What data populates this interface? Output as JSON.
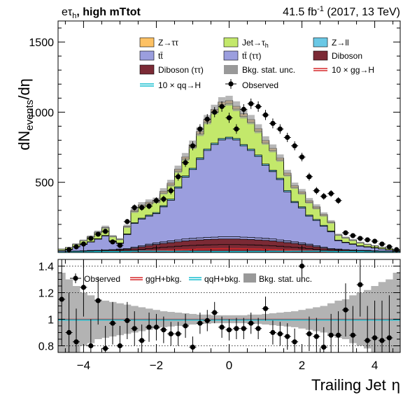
{
  "header": {
    "channel": "eτ",
    "channel_sub": "h",
    "category": ", high mTtot",
    "lumi": "41.5 fb",
    "lumi_sup": "-1",
    "lumi_suffix": " (2017, 13 TeV)"
  },
  "colors": {
    "ztt": "#fdc164",
    "jetfake": "#c3e86b",
    "zll": "#6ac8e5",
    "ttbar": "#9b9ede",
    "ttbar_tt": "#9b9ede",
    "diboson": "#7b2a35",
    "diboson_tt": "#7b2a35",
    "stat_unc": "#999999",
    "ggh": "#d62728",
    "qqh": "#17becf"
  },
  "chart_data": [
    {
      "type": "histogram-stack",
      "ylabel": "dN",
      "ylabel_sub": "events",
      "ylabel_suffix": "/dη",
      "ylim": [
        0,
        1650
      ],
      "xlim": [
        -4.7,
        4.7
      ],
      "yticks": [
        500,
        1000,
        1500
      ],
      "bin_edges": [
        -4.7,
        -4.5,
        -4.3,
        -4.1,
        -3.9,
        -3.7,
        -3.5,
        -3.3,
        -3.1,
        -2.9,
        -2.7,
        -2.5,
        -2.3,
        -2.1,
        -1.9,
        -1.7,
        -1.5,
        -1.3,
        -1.1,
        -0.9,
        -0.7,
        -0.5,
        -0.3,
        -0.1,
        0.1,
        0.3,
        0.5,
        0.7,
        0.9,
        1.1,
        1.3,
        1.5,
        1.7,
        1.9,
        2.1,
        2.3,
        2.5,
        2.7,
        2.9,
        3.1,
        3.3,
        3.5,
        3.7,
        3.9,
        4.1,
        4.3,
        4.5,
        4.7
      ],
      "legend": [
        {
          "key": "ztt",
          "label": "Z→ττ",
          "style": "fill"
        },
        {
          "key": "jetfake",
          "label": "Jet→τ",
          "sub": "h",
          "style": "fill"
        },
        {
          "key": "zll",
          "label": "Z→ll",
          "style": "fill"
        },
        {
          "key": "ttbar",
          "label": "tt̄",
          "style": "fill"
        },
        {
          "key": "ttbar_tt",
          "label": "tt̄ (ττ)",
          "style": "fill"
        },
        {
          "key": "diboson",
          "label": "Diboson",
          "style": "fill"
        },
        {
          "key": "diboson_tt",
          "label": "Diboson (ττ)",
          "style": "fill"
        },
        {
          "key": "stat_unc",
          "label": "Bkg. stat. unc.",
          "style": "fill"
        },
        {
          "key": "ggh",
          "label": "10 × gg→H",
          "style": "line"
        },
        {
          "key": "qqh",
          "label": "10 × qq→H",
          "style": "line"
        },
        {
          "key": "observed",
          "label": "Observed",
          "style": "marker"
        }
      ],
      "series": [
        {
          "name": "Diboson (ττ)",
          "key": "diboson_tt",
          "values": [
            2,
            3,
            4,
            5,
            6,
            6,
            7,
            8,
            10,
            12,
            16,
            22,
            28,
            32,
            36,
            40,
            44,
            48,
            50,
            52,
            54,
            55,
            56,
            56,
            56,
            55,
            54,
            52,
            50,
            48,
            44,
            40,
            36,
            32,
            28,
            22,
            16,
            12,
            10,
            8,
            7,
            6,
            6,
            5,
            4,
            3,
            2
          ]
        },
        {
          "name": "Diboson",
          "key": "diboson",
          "values": [
            2,
            3,
            4,
            5,
            5,
            6,
            7,
            8,
            9,
            10,
            14,
            18,
            22,
            25,
            28,
            30,
            32,
            34,
            36,
            37,
            38,
            39,
            40,
            40,
            40,
            39,
            38,
            37,
            36,
            34,
            32,
            30,
            28,
            25,
            22,
            18,
            14,
            10,
            9,
            8,
            7,
            6,
            5,
            5,
            4,
            3,
            2
          ]
        },
        {
          "name": "tt̄ (ττ)",
          "key": "ttbar_tt",
          "values": [
            1,
            1,
            2,
            2,
            3,
            3,
            4,
            4,
            5,
            6,
            7,
            8,
            9,
            10,
            11,
            12,
            13,
            14,
            14,
            15,
            15,
            15,
            16,
            16,
            16,
            15,
            15,
            15,
            14,
            14,
            13,
            12,
            11,
            10,
            9,
            8,
            7,
            6,
            5,
            4,
            4,
            3,
            3,
            2,
            2,
            1,
            1
          ]
        },
        {
          "name": "tt̄",
          "key": "ttbar",
          "values": [
            8,
            15,
            30,
            45,
            60,
            80,
            100,
            60,
            40,
            100,
            170,
            190,
            200,
            210,
            250,
            290,
            370,
            440,
            490,
            560,
            620,
            660,
            690,
            700,
            690,
            650,
            620,
            580,
            520,
            480,
            430,
            350,
            280,
            250,
            200,
            180,
            150,
            120,
            60,
            50,
            40,
            30,
            25,
            20,
            15,
            10,
            5
          ]
        },
        {
          "name": "Z→ll",
          "key": "zll",
          "values": [
            1,
            1,
            1,
            2,
            2,
            3,
            3,
            3,
            3,
            4,
            5,
            6,
            7,
            7,
            8,
            8,
            9,
            9,
            10,
            10,
            10,
            10,
            10,
            10,
            10,
            10,
            10,
            10,
            10,
            10,
            9,
            9,
            8,
            8,
            7,
            7,
            6,
            5,
            4,
            3,
            3,
            3,
            2,
            2,
            1,
            1,
            1
          ]
        },
        {
          "name": "Jet→τh",
          "key": "jetfake",
          "values": [
            10,
            12,
            18,
            25,
            35,
            45,
            55,
            30,
            25,
            50,
            80,
            85,
            80,
            75,
            90,
            100,
            110,
            120,
            150,
            170,
            190,
            220,
            240,
            240,
            210,
            200,
            190,
            170,
            150,
            140,
            130,
            110,
            100,
            95,
            90,
            80,
            70,
            60,
            35,
            30,
            25,
            20,
            15,
            12,
            10,
            8,
            6
          ]
        },
        {
          "name": "Z→ττ",
          "key": "ztt",
          "values": [
            0,
            1,
            1,
            2,
            2,
            3,
            3,
            3,
            3,
            5,
            8,
            10,
            12,
            12,
            13,
            14,
            15,
            16,
            18,
            18,
            20,
            20,
            20,
            20,
            20,
            20,
            20,
            18,
            18,
            16,
            15,
            14,
            13,
            12,
            12,
            10,
            8,
            5,
            3,
            3,
            3,
            2,
            2,
            2,
            1,
            1,
            0
          ]
        }
      ],
      "stat_unc": [
        3,
        4,
        5,
        6,
        8,
        10,
        12,
        8,
        7,
        12,
        18,
        20,
        20,
        20,
        22,
        24,
        26,
        28,
        30,
        32,
        33,
        34,
        35,
        35,
        35,
        34,
        33,
        32,
        30,
        28,
        26,
        24,
        22,
        20,
        20,
        18,
        15,
        12,
        8,
        7,
        7,
        6,
        5,
        4,
        3,
        3,
        2
      ],
      "signals": [
        {
          "name": "10 × gg→H",
          "key": "ggh",
          "values": [
            1,
            1,
            2,
            2,
            3,
            3,
            3,
            4,
            4,
            5,
            6,
            8,
            10,
            12,
            14,
            16,
            18,
            20,
            22,
            24,
            25,
            26,
            27,
            27,
            27,
            26,
            25,
            24,
            22,
            20,
            18,
            16,
            14,
            12,
            10,
            8,
            6,
            5,
            4,
            4,
            3,
            3,
            3,
            2,
            2,
            1,
            1
          ]
        },
        {
          "name": "10 × qq→H",
          "key": "qqh",
          "values": [
            1,
            2,
            3,
            4,
            5,
            6,
            7,
            6,
            6,
            7,
            8,
            9,
            9,
            9,
            9,
            8,
            8,
            8,
            7,
            7,
            7,
            6,
            6,
            6,
            6,
            6,
            7,
            7,
            7,
            8,
            8,
            8,
            9,
            9,
            9,
            9,
            8,
            7,
            6,
            6,
            7,
            6,
            5,
            4,
            3,
            2,
            1
          ]
        }
      ],
      "observed": {
        "x": [
          -4.4,
          -4.2,
          -4.0,
          -3.8,
          -3.6,
          -3.4,
          -3.2,
          -3.0,
          -2.8,
          -2.6,
          -2.4,
          -2.2,
          -2.0,
          -1.8,
          -1.6,
          -1.4,
          -1.2,
          -1.0,
          -0.8,
          -0.6,
          -0.4,
          -0.2,
          0.0,
          0.2,
          0.4,
          0.6,
          0.8,
          1.0,
          1.2,
          1.4,
          1.6,
          1.8,
          2.0,
          2.2,
          2.4,
          2.6,
          2.8,
          3.0,
          3.2,
          3.4,
          3.6,
          3.8,
          4.0,
          4.2,
          4.4,
          4.6
        ],
        "y": [
          20,
          40,
          60,
          100,
          130,
          150,
          75,
          50,
          220,
          320,
          320,
          330,
          370,
          380,
          440,
          540,
          640,
          760,
          880,
          950,
          1000,
          1040,
          960,
          880,
          1020,
          1060,
          1040,
          980,
          920,
          880,
          820,
          760,
          680,
          540,
          440,
          400,
          420,
          370,
          140,
          120,
          100,
          90,
          80,
          60,
          40,
          20
        ],
        "err": [
          6,
          8,
          10,
          12,
          14,
          15,
          10,
          8,
          18,
          22,
          22,
          22,
          23,
          24,
          26,
          28,
          30,
          32,
          34,
          36,
          36,
          37,
          36,
          34,
          37,
          37,
          37,
          36,
          35,
          34,
          33,
          32,
          30,
          28,
          26,
          24,
          24,
          23,
          14,
          13,
          12,
          11,
          10,
          9,
          7,
          5
        ]
      }
    },
    {
      "type": "ratio",
      "xlabel": "Trailing Jet",
      "xlabel_suffix": "η",
      "ylim": [
        0.75,
        1.45
      ],
      "yticks": [
        0.8,
        1,
        1.2,
        1.4
      ],
      "xticks": [
        -4,
        -2,
        0,
        2,
        4
      ],
      "legend": [
        {
          "key": "observed",
          "label": "Observed",
          "style": "marker"
        },
        {
          "key": "ggh",
          "label": "ggH+bkg.",
          "style": "line"
        },
        {
          "key": "qqh",
          "label": "qqH+bkg.",
          "style": "line"
        },
        {
          "key": "stat_unc",
          "label": "Bkg. stat. unc.",
          "style": "fill"
        }
      ],
      "unc_band": [
        0.35,
        0.3,
        0.25,
        0.2,
        0.18,
        0.15,
        0.14,
        0.13,
        0.12,
        0.11,
        0.1,
        0.09,
        0.08,
        0.07,
        0.06,
        0.055,
        0.05,
        0.045,
        0.04,
        0.035,
        0.035,
        0.03,
        0.03,
        0.03,
        0.03,
        0.03,
        0.035,
        0.035,
        0.04,
        0.045,
        0.05,
        0.055,
        0.06,
        0.07,
        0.08,
        0.09,
        0.1,
        0.12,
        0.14,
        0.15,
        0.18,
        0.2,
        0.22,
        0.25,
        0.28,
        0.3,
        0.35
      ],
      "observed": {
        "x": [
          -4.6,
          -4.4,
          -4.2,
          -4.0,
          -3.8,
          -3.6,
          -3.4,
          -3.2,
          -3.0,
          -2.8,
          -2.6,
          -2.4,
          -2.2,
          -2.0,
          -1.8,
          -1.6,
          -1.4,
          -1.2,
          -1.0,
          -0.8,
          -0.6,
          -0.4,
          -0.2,
          0.0,
          0.2,
          0.4,
          0.6,
          0.8,
          1.0,
          1.2,
          1.4,
          1.6,
          1.8,
          2.0,
          2.2,
          2.4,
          2.6,
          2.8,
          3.0,
          3.2,
          3.4,
          3.6,
          3.8,
          4.0,
          4.2,
          4.4
        ],
        "y": [
          1.15,
          0.9,
          0.83,
          1.24,
          0.8,
          1.14,
          0.78,
          0.97,
          0.8,
          0.99,
          0.93,
          0.84,
          0.94,
          0.94,
          0.92,
          0.89,
          0.89,
          0.95,
          0.79,
          0.97,
          0.99,
          1.05,
          0.94,
          0.92,
          0.93,
          0.93,
          0.97,
          0.93,
          1.08,
          0.9,
          0.89,
          0.87,
          0.83,
          1.4,
          0.89,
          0.87,
          0.79,
          0.88,
          0.88,
          1.07,
          0.88,
          1.26,
          0.84,
          0.86,
          0.84,
          0.86
        ],
        "err": [
          0.35,
          0.3,
          0.25,
          0.22,
          0.2,
          0.18,
          0.17,
          0.16,
          0.15,
          0.14,
          0.13,
          0.12,
          0.11,
          0.1,
          0.1,
          0.09,
          0.09,
          0.09,
          0.08,
          0.08,
          0.08,
          0.08,
          0.08,
          0.08,
          0.08,
          0.08,
          0.08,
          0.08,
          0.09,
          0.09,
          0.09,
          0.1,
          0.1,
          0.12,
          0.13,
          0.14,
          0.15,
          0.16,
          0.18,
          0.2,
          0.22,
          0.24,
          0.26,
          0.28,
          0.3,
          0.32
        ]
      }
    }
  ]
}
